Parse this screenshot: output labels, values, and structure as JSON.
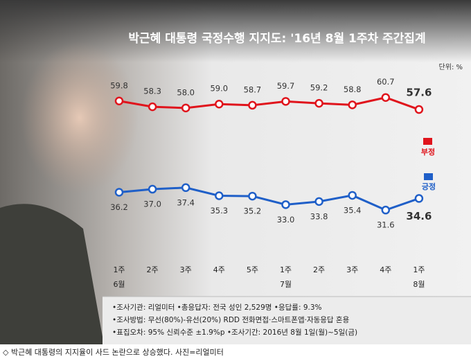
{
  "chart_data": {
    "type": "line",
    "title": "박근혜 대통령 국정수행 지지도: '16년 8월 1주차 주간집계",
    "unit": "단위: %",
    "x": [
      "1주\n6월",
      "2주",
      "3주",
      "4주",
      "5주",
      "1주\n7월",
      "2주",
      "3주",
      "4주",
      "1주\n8월"
    ],
    "series": [
      {
        "name": "부정",
        "color": "#e0141c",
        "values": [
          59.8,
          58.3,
          58.0,
          59.0,
          58.7,
          59.7,
          59.2,
          58.8,
          60.7,
          57.6
        ],
        "value_labels": [
          "59.8",
          "58.3",
          "58.0",
          "59.0",
          "58.7",
          "59.7",
          "59.2",
          "58.8",
          "60.7",
          "57.6"
        ]
      },
      {
        "name": "긍정",
        "color": "#1f5fc8",
        "values": [
          36.2,
          37.0,
          37.4,
          35.3,
          35.2,
          33.0,
          33.8,
          35.4,
          31.6,
          34.6
        ],
        "value_labels": [
          "36.2",
          "37.0",
          "37.4",
          "35.3",
          "35.2",
          "33.0",
          "33.8",
          "35.4",
          "31.6",
          "34.6"
        ]
      }
    ],
    "ylim": [
      25,
      68
    ],
    "notes": [
      "•조사기관: 리얼미터  •총응답자: 전국 성인 2,529명  •응답률: 9.3%",
      "•조사방법: 무선(80%)-유선(20%)  RDD 전화면접·스마트폰앱·자동응답 혼용",
      "•표집오차: 95% 신뢰수준 ±1.9%p  •조사기간: 2016년 8월 1일(월)~5일(금)"
    ]
  },
  "caption": "◇ 박근혜 대통령의 지지율이 사드 논란으로 상승했다. 사진=리얼미터"
}
